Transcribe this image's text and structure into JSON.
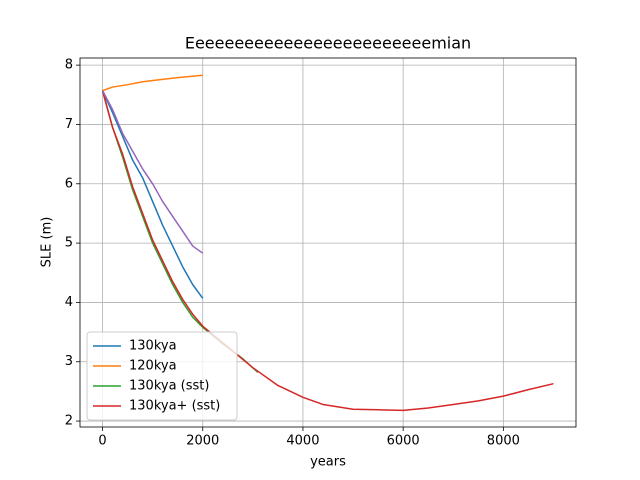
{
  "chart_data": {
    "type": "line",
    "title": "Eeeeeeeeeeeeeeeeeeeeeeeeemian",
    "xlabel": "years",
    "ylabel": "SLE (m)",
    "xlim": [
      -450,
      9450
    ],
    "ylim": [
      1.9,
      8.12
    ],
    "xticks": [
      0,
      2000,
      4000,
      6000,
      8000
    ],
    "yticks": [
      2,
      3,
      4,
      5,
      6,
      7,
      8
    ],
    "grid": true,
    "legend": "lower left",
    "series": [
      {
        "name": "130kya",
        "color": "#1f77b4",
        "x": [
          0,
          200,
          400,
          600,
          800,
          1000,
          1200,
          1400,
          1600,
          1800,
          2000
        ],
        "values": [
          7.57,
          7.2,
          6.8,
          6.4,
          6.1,
          5.7,
          5.3,
          4.95,
          4.6,
          4.3,
          4.07
        ]
      },
      {
        "name": "120kya",
        "color": "#ff7f0e",
        "x": [
          0,
          200,
          500,
          800,
          1000,
          1500,
          2000
        ],
        "values": [
          7.57,
          7.63,
          7.67,
          7.72,
          7.74,
          7.79,
          7.83
        ]
      },
      {
        "name": "130kya (sst)",
        "color": "#2ca02c",
        "x": [
          0,
          200,
          400,
          600,
          800,
          1000,
          1200,
          1400,
          1600,
          1800,
          2000,
          2400,
          2800,
          3100
        ],
        "values": [
          7.57,
          6.95,
          6.45,
          5.9,
          5.45,
          5.0,
          4.65,
          4.3,
          4.0,
          3.75,
          3.58,
          3.3,
          3.05,
          2.82
        ]
      },
      {
        "name": "130kya+ (sst)",
        "color": "#d62728",
        "x": [
          0,
          200,
          400,
          600,
          800,
          1000,
          1200,
          1400,
          1600,
          1800,
          2000,
          2500,
          3000,
          3500,
          4000,
          4400,
          5000,
          5500,
          6000,
          6500,
          7000,
          7500,
          8000,
          8500,
          9000
        ],
        "values": [
          7.57,
          6.95,
          6.5,
          5.95,
          5.5,
          5.05,
          4.7,
          4.35,
          4.05,
          3.8,
          3.6,
          3.25,
          2.9,
          2.6,
          2.4,
          2.28,
          2.2,
          2.19,
          2.18,
          2.22,
          2.28,
          2.34,
          2.42,
          2.53,
          2.63
        ]
      },
      {
        "color": "#9467bd",
        "x": [
          0,
          200,
          400,
          600,
          800,
          1000,
          1200,
          1400,
          1600,
          1800,
          2000
        ],
        "values": [
          7.57,
          7.25,
          6.85,
          6.55,
          6.25,
          6.0,
          5.7,
          5.45,
          5.2,
          4.95,
          4.83
        ]
      }
    ]
  }
}
